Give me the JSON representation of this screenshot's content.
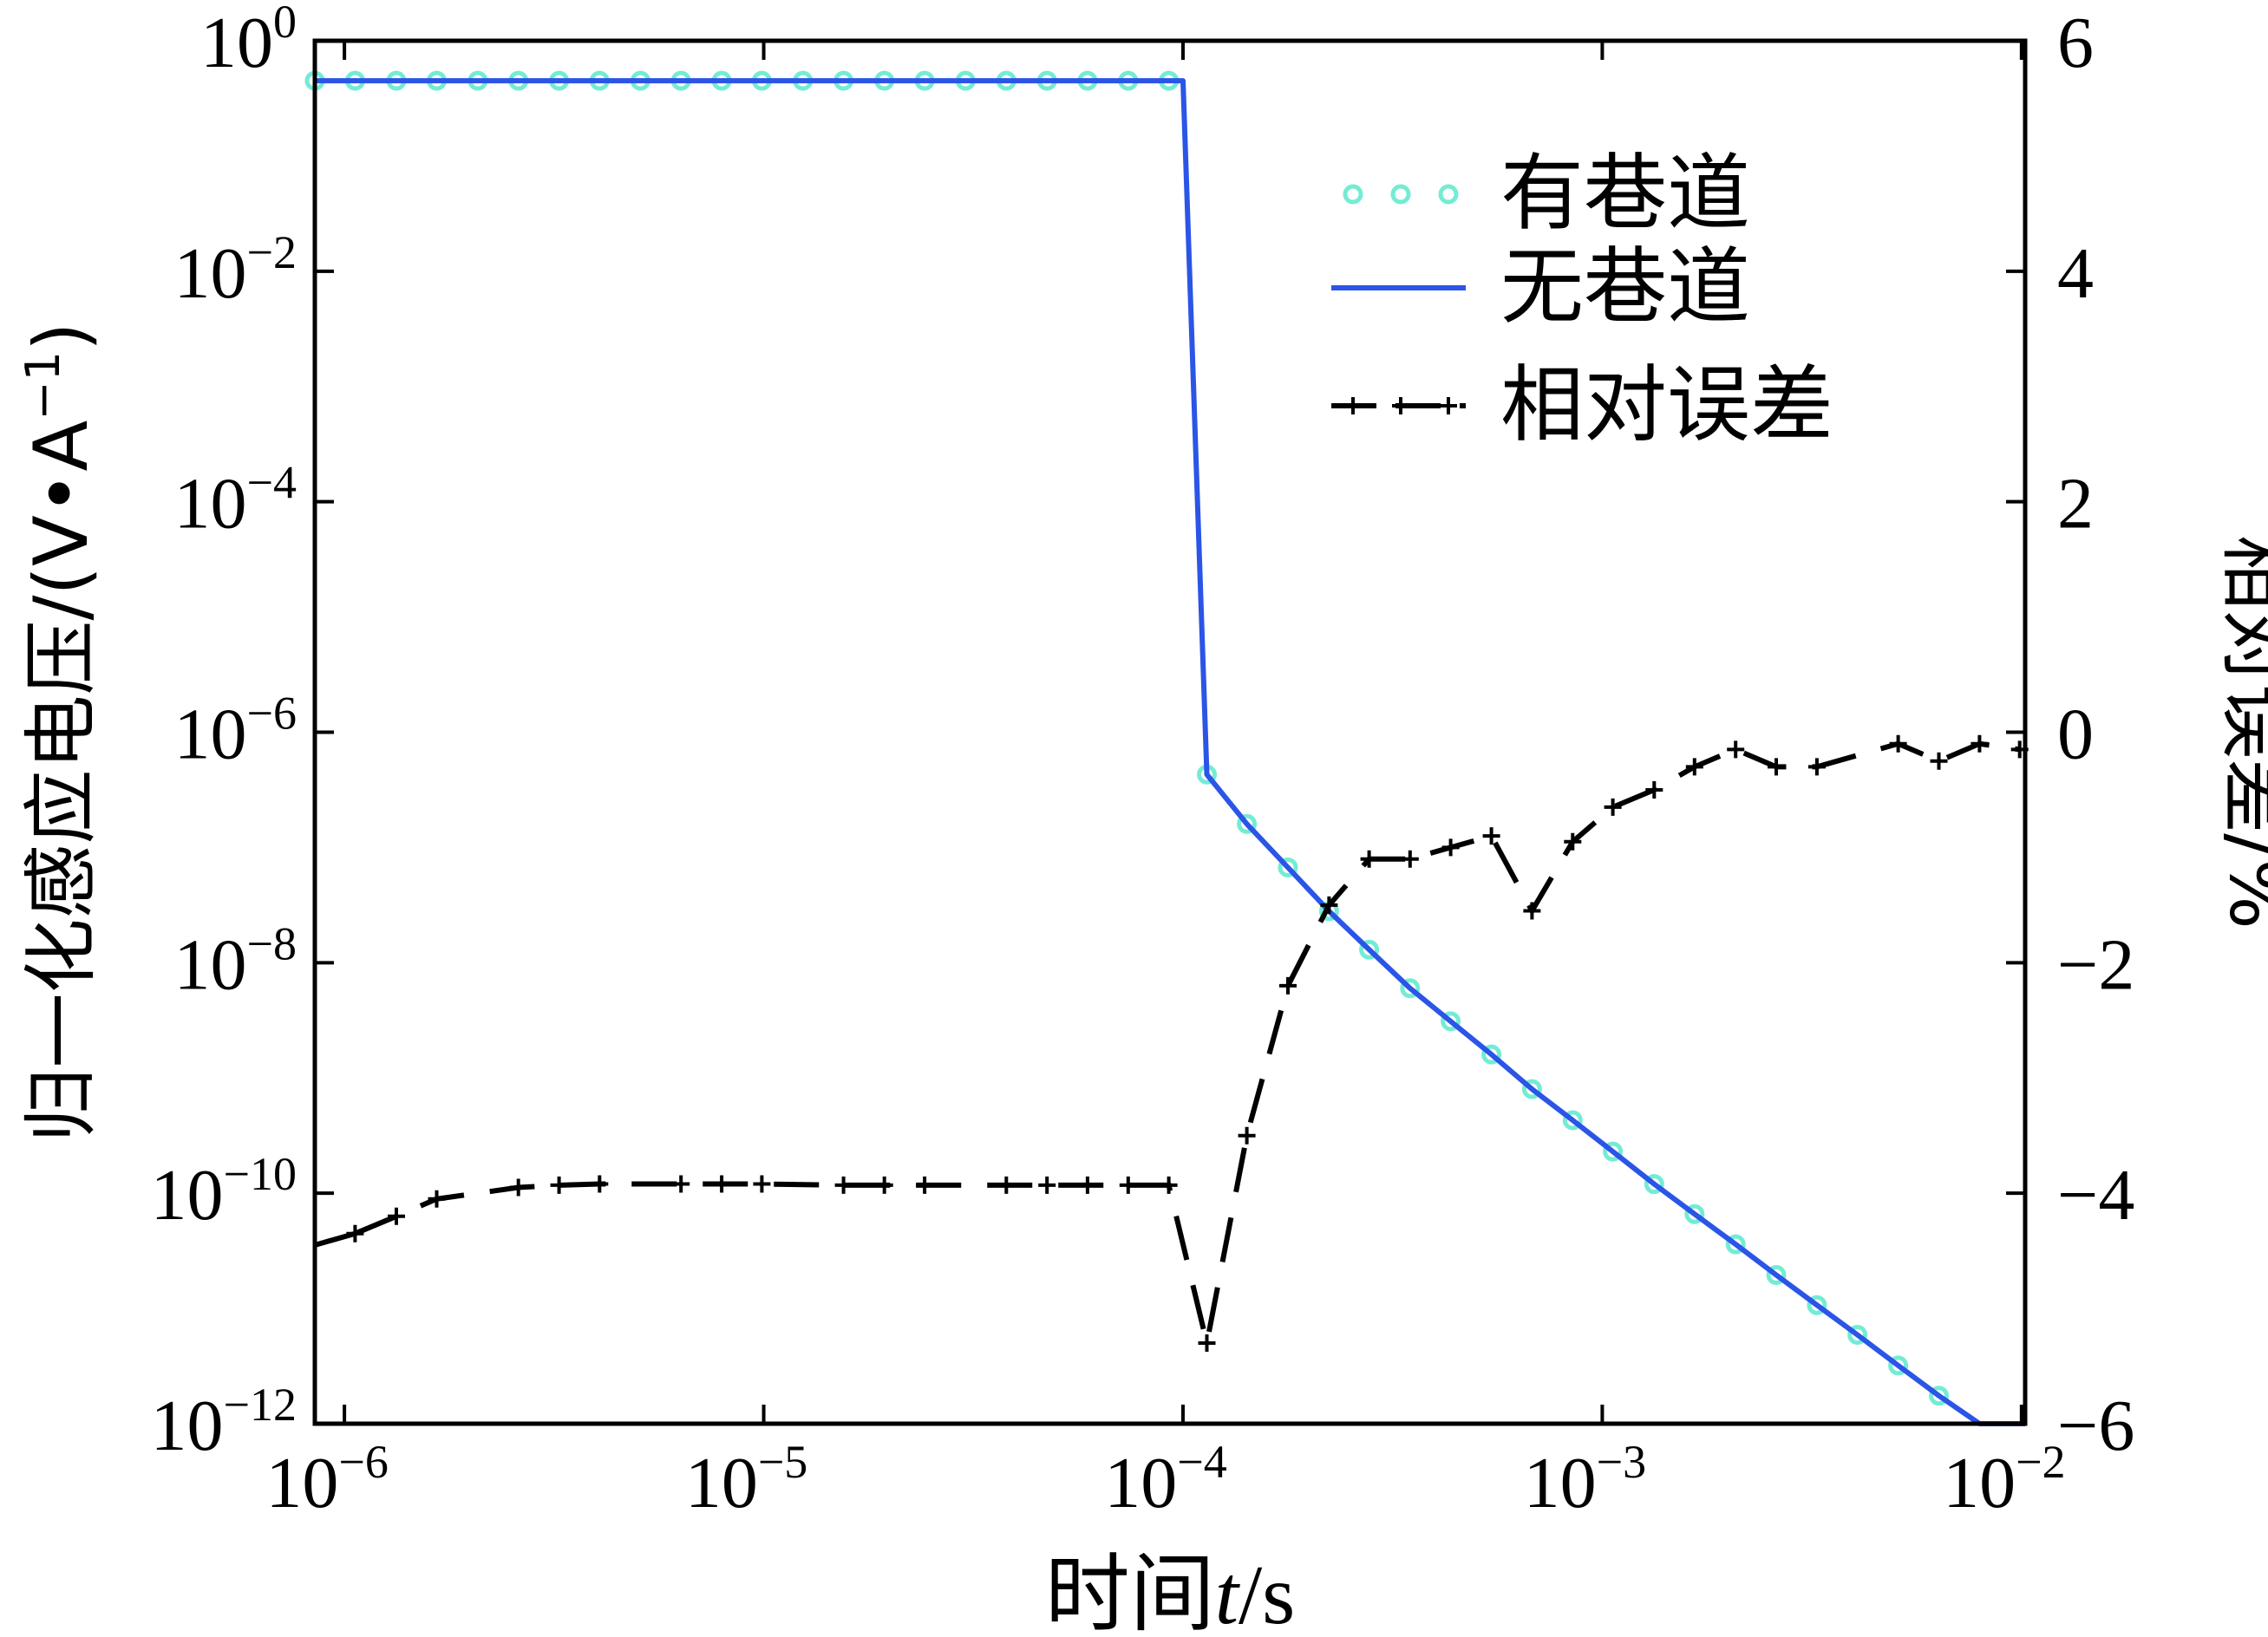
{
  "chart_data": {
    "type": "line",
    "x_scale": "log",
    "y_left_scale": "log",
    "xlim": [
      8.5e-07,
      0.0102
    ],
    "ylim_left": [
      1e-12,
      1
    ],
    "ylim_right": [
      -6,
      6
    ],
    "x_ticks": [
      {
        "value": 1e-06,
        "base": "10",
        "exp": "−6"
      },
      {
        "value": 1e-05,
        "base": "10",
        "exp": "−5"
      },
      {
        "value": 0.0001,
        "base": "10",
        "exp": "−4"
      },
      {
        "value": 0.001,
        "base": "10",
        "exp": "−3"
      },
      {
        "value": 0.01,
        "base": "10",
        "exp": "−2"
      }
    ],
    "y_left_ticks": [
      {
        "value": 1,
        "base": "10",
        "exp": "0"
      },
      {
        "value": 0.01,
        "base": "10",
        "exp": "−2"
      },
      {
        "value": 0.0001,
        "base": "10",
        "exp": "−4"
      },
      {
        "value": 1e-06,
        "base": "10",
        "exp": "−6"
      },
      {
        "value": 1e-08,
        "base": "10",
        "exp": "−8"
      },
      {
        "value": 1e-10,
        "base": "10",
        "exp": "−10"
      },
      {
        "value": 1e-12,
        "base": "10",
        "exp": "−12"
      }
    ],
    "y_right_ticks": [
      {
        "value": 6,
        "label": "6"
      },
      {
        "value": 4,
        "label": "4"
      },
      {
        "value": 2,
        "label": "2"
      },
      {
        "value": 0,
        "label": "0"
      },
      {
        "value": -2,
        "label": "−2"
      },
      {
        "value": -4,
        "label": "−4"
      },
      {
        "value": -6,
        "label": "−6"
      }
    ],
    "xlabel": {
      "prefix": "时间",
      "var": "t",
      "suffix": "/s"
    },
    "ylabel_left": {
      "text": "归一化感应电压/(V•A",
      "sup": "−1",
      "close": ")"
    },
    "ylabel_right": "相对误差/%",
    "legend_position": "top-right",
    "grid": false,
    "series": [
      {
        "name": "有巷道",
        "axis": "left",
        "style": "circle-markers",
        "color": "#74ecd4",
        "x": [
          8.5e-07,
          1.06e-06,
          1.33e-06,
          1.66e-06,
          2.08e-06,
          2.6e-06,
          3.25e-06,
          4.06e-06,
          5.08e-06,
          6.35e-06,
          7.94e-06,
          9.9e-06,
          1.24e-05,
          1.55e-05,
          1.94e-05,
          2.42e-05,
          3.03e-05,
          3.79e-05,
          4.74e-05,
          5.92e-05,
          7.4e-05,
          9.25e-05,
          0.000114,
          0.000142,
          0.000178,
          0.000223,
          0.000278,
          0.000348,
          0.000435,
          0.000544,
          0.00068,
          0.00085,
          0.00106,
          0.00133,
          0.00166,
          0.00208,
          0.0026,
          0.00325,
          0.00406,
          0.00508,
          0.00635,
          0.00794,
          0.0099
        ],
        "y": [
          0.45,
          0.45,
          0.45,
          0.45,
          0.45,
          0.45,
          0.45,
          0.45,
          0.45,
          0.45,
          0.45,
          0.45,
          0.45,
          0.45,
          0.45,
          0.45,
          0.45,
          0.45,
          0.45,
          0.45,
          0.45,
          0.45,
          4.3e-07,
          1.6e-07,
          6.7e-08,
          2.8e-08,
          1.3e-08,
          6e-09,
          3.1e-09,
          1.6e-09,
          8e-10,
          4.3e-10,
          2.3e-10,
          1.2e-10,
          6.6e-11,
          3.6e-11,
          1.95e-11,
          1.07e-11,
          5.9e-12,
          3.2e-12,
          1.75e-12,
          9.6e-13,
          5.3e-13
        ]
      },
      {
        "name": "无巷道",
        "axis": "left",
        "style": "solid-line",
        "color": "#2b55e6",
        "x": [
          8.5e-07,
          0.0001,
          0.000114,
          0.000142,
          0.000178,
          0.000223,
          0.000278,
          0.000348,
          0.000435,
          0.000544,
          0.00068,
          0.00085,
          0.00106,
          0.00133,
          0.00166,
          0.00208,
          0.0026,
          0.00325,
          0.00406,
          0.00508,
          0.00635,
          0.00794,
          0.0102
        ],
        "y": [
          0.45,
          0.45,
          4.3e-07,
          1.6e-07,
          6.7e-08,
          2.8e-08,
          1.3e-08,
          6e-09,
          3.1e-09,
          1.6e-09,
          8e-10,
          4.3e-10,
          2.3e-10,
          1.2e-10,
          6.6e-11,
          3.6e-11,
          1.95e-11,
          1.07e-11,
          5.9e-12,
          3.2e-12,
          1.75e-12,
          9.6e-13,
          5.3e-13
        ]
      },
      {
        "name": "相对误差",
        "axis": "right",
        "style": "dash-plus",
        "color": "#000000",
        "x": [
          1.06e-06,
          1.33e-06,
          1.66e-06,
          2.6e-06,
          3.25e-06,
          4.06e-06,
          6.35e-06,
          7.94e-06,
          9.9e-06,
          1.55e-05,
          1.94e-05,
          2.42e-05,
          3.79e-05,
          4.74e-05,
          5.92e-05,
          7.4e-05,
          9.25e-05,
          0.000114,
          0.000142,
          0.000178,
          0.000223,
          0.000278,
          0.000348,
          0.000435,
          0.000544,
          0.00068,
          0.00085,
          0.00106,
          0.00133,
          0.00166,
          0.00208,
          0.0026,
          0.00325,
          0.00508,
          0.00635,
          0.00794,
          0.0099
        ],
        "y": [
          -4.35,
          -4.2,
          -4.05,
          -3.95,
          -3.93,
          -3.92,
          -3.92,
          -3.92,
          -3.92,
          -3.93,
          -3.93,
          -3.93,
          -3.93,
          -3.93,
          -3.93,
          -3.93,
          -3.93,
          -5.3,
          -3.5,
          -2.2,
          -1.5,
          -1.1,
          -1.1,
          -1.0,
          -0.9,
          -1.55,
          -0.95,
          -0.65,
          -0.5,
          -0.3,
          -0.15,
          -0.3,
          -0.3,
          -0.1,
          -0.25,
          -0.1,
          -0.15
        ]
      }
    ]
  }
}
